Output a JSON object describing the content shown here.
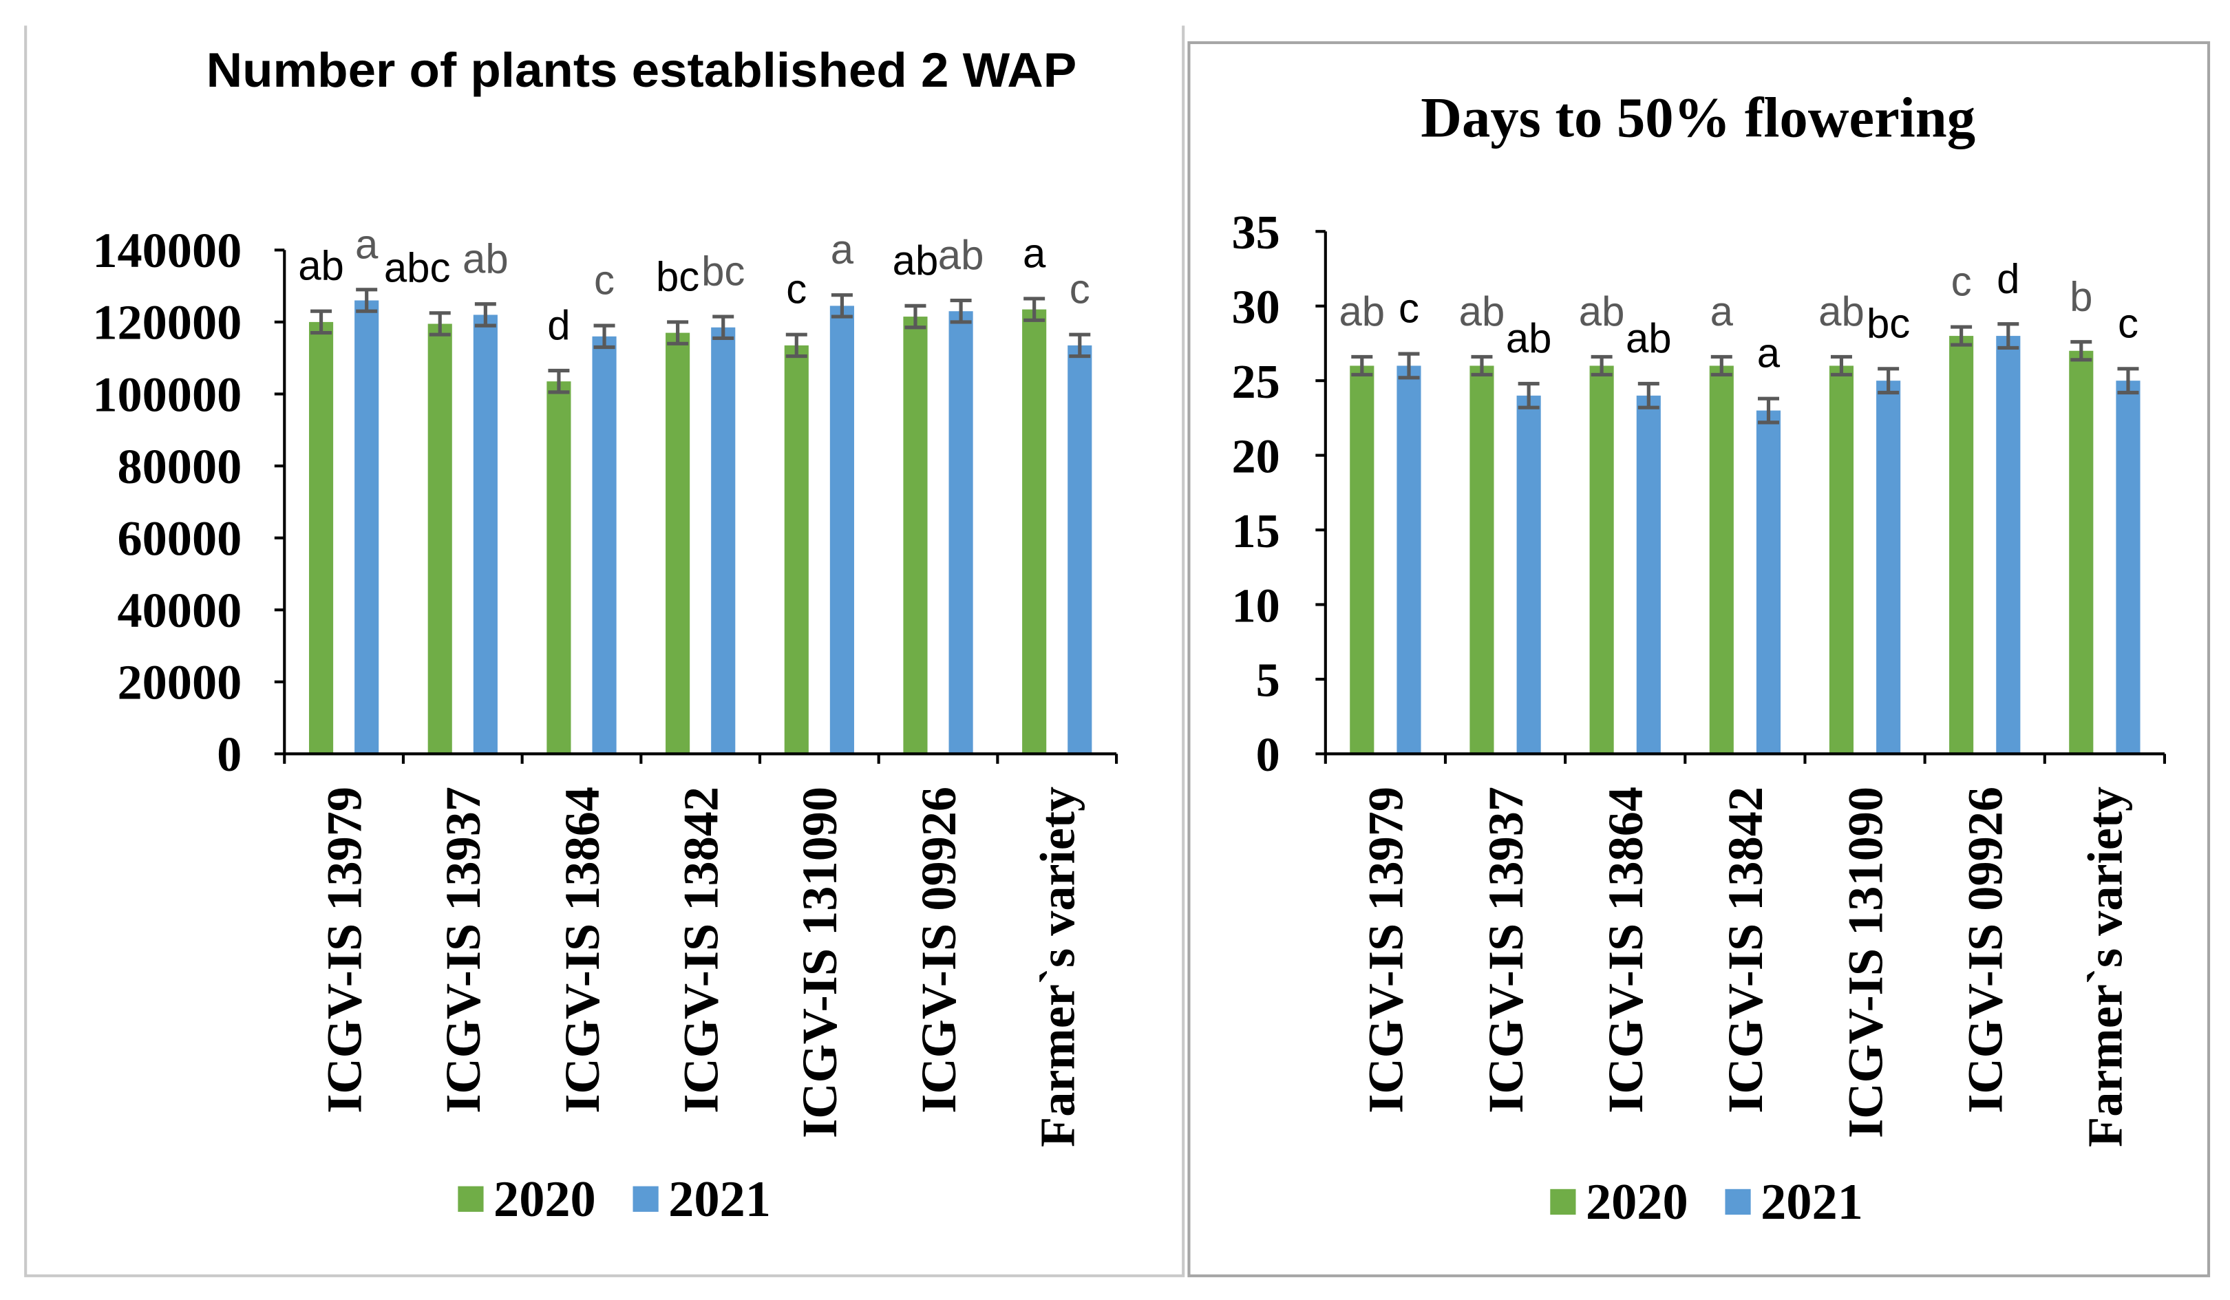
{
  "chart_data": [
    {
      "type": "bar",
      "title": "Number of plants established 2 WAP",
      "xlabel": "",
      "ylabel": "",
      "ylim": [
        0,
        140000
      ],
      "yticks": [
        0,
        20000,
        40000,
        60000,
        80000,
        100000,
        120000,
        140000
      ],
      "grid": false,
      "legend": "bottom",
      "categories": [
        "ICGV-IS 13979",
        "ICGV-IS 13937",
        "ICGV-IS 13864",
        "ICGV-IS 13842",
        "ICGV-IS 131090",
        "ICGV-IS 09926",
        "Farmer`s variety"
      ],
      "series": [
        {
          "name": "2020",
          "color": "#70AD47",
          "letter_color": "#000000",
          "values": [
            120000,
            119500,
            103500,
            117000,
            113500,
            121500,
            123500
          ],
          "errors": [
            3000,
            3000,
            3000,
            3000,
            3000,
            3000,
            3000
          ],
          "letters": [
            "ab",
            "abc",
            "d",
            "bc",
            "c",
            "ab",
            "a"
          ]
        },
        {
          "name": "2021",
          "color": "#5B9BD5",
          "letter_color": "#595959",
          "values": [
            126000,
            122000,
            116000,
            118500,
            124500,
            123000,
            113500
          ],
          "errors": [
            3000,
            3000,
            3000,
            3000,
            3000,
            3000,
            3000
          ],
          "letters": [
            "a",
            "ab",
            "c",
            "bc",
            "a",
            "ab",
            "c"
          ]
        }
      ]
    },
    {
      "type": "bar",
      "title": "Days to 50% flowering",
      "xlabel": "",
      "ylabel": "",
      "ylim": [
        0,
        35
      ],
      "yticks": [
        0,
        5,
        10,
        15,
        20,
        25,
        30,
        35
      ],
      "grid": false,
      "legend": "bottom",
      "categories": [
        "ICGV-IS 13979",
        "ICGV-IS 13937",
        "ICGV-IS 13864",
        "ICGV-IS 13842",
        "ICGV-IS 131090",
        "ICGV-IS 09926",
        "Farmer`s variety"
      ],
      "series": [
        {
          "name": "2020",
          "color": "#70AD47",
          "letter_color": "#595959",
          "values": [
            26,
            26,
            26,
            26,
            26,
            28,
            27
          ],
          "errors": [
            0.6,
            0.6,
            0.6,
            0.6,
            0.6,
            0.6,
            0.6
          ],
          "letters": [
            "ab",
            "ab",
            "ab",
            "a",
            "ab",
            "c",
            "b"
          ]
        },
        {
          "name": "2021",
          "color": "#5B9BD5",
          "letter_color": "#000000",
          "values": [
            26,
            24,
            24,
            23,
            25,
            28,
            25
          ],
          "errors": [
            0.8,
            0.8,
            0.8,
            0.8,
            0.8,
            0.8,
            0.8
          ],
          "letters": [
            "c",
            "ab",
            "ab",
            "a",
            "bc",
            "d",
            "c"
          ]
        }
      ]
    }
  ],
  "colors": {
    "error_bar": "#595959",
    "axis": "#000000",
    "left_frame": "#c9c9c9",
    "right_frame": "#a6a6a6"
  }
}
